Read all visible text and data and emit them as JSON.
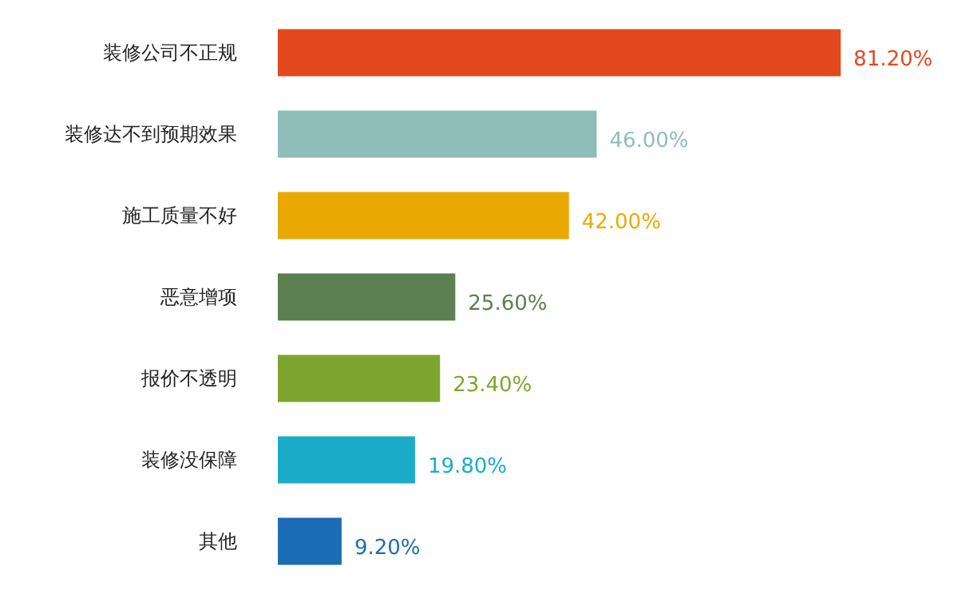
{
  "chart_data": {
    "type": "bar",
    "orientation": "horizontal",
    "categories": [
      "装修公司不正规",
      "装修达不到预期效果",
      "施工质量不好",
      "恶意增项",
      "报价不透明",
      "装修没保障",
      "其他"
    ],
    "values": [
      81.2,
      46.0,
      42.0,
      25.6,
      23.4,
      19.8,
      9.2
    ],
    "value_labels": [
      "81.20%",
      "46.00%",
      "42.00%",
      "25.60%",
      "23.40%",
      "19.80%",
      "9.20%"
    ],
    "colors": [
      "#e2491e",
      "#8fbdb9",
      "#e9a900",
      "#5b7f4f",
      "#7ea62f",
      "#1bacc9",
      "#1b6db6"
    ]
  }
}
